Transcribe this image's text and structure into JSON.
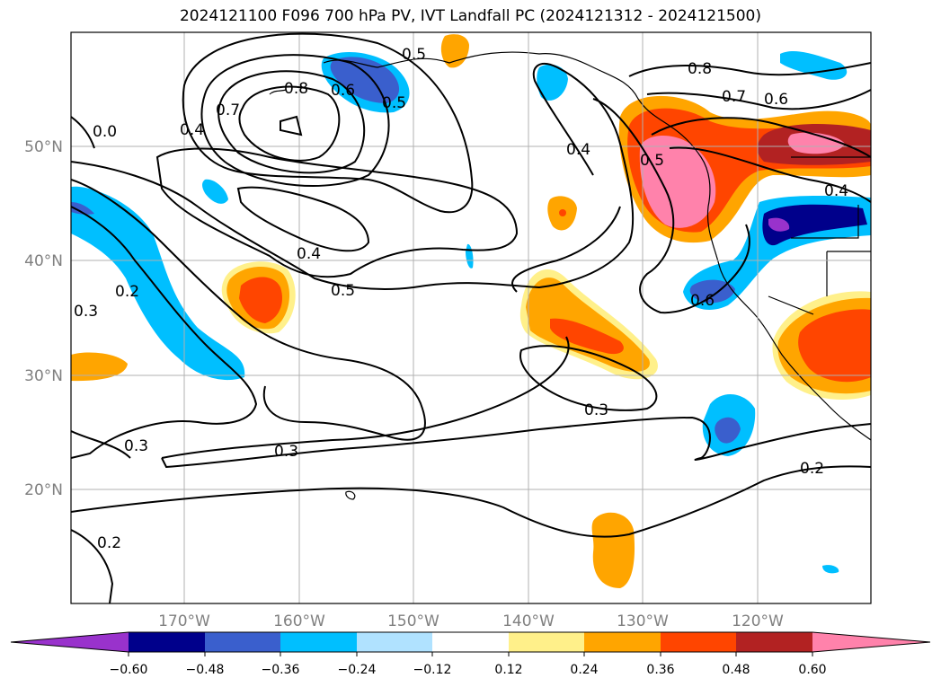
{
  "title": "2024121100 F096 700 hPa PV, IVT Landfall PC (2024121312 - 2024121500)",
  "axes": {
    "lat_labels": [
      "20°N",
      "30°N",
      "40°N",
      "50°N"
    ],
    "lon_labels": [
      "170°W",
      "160°W",
      "150°W",
      "140°W",
      "130°W",
      "120°W"
    ]
  },
  "contour_labels": [
    "0.5",
    "0.6",
    "0.5",
    "0.8",
    "0.7",
    "0.4",
    "0.0",
    "0.8",
    "0.7",
    "0.6",
    "0.4",
    "0.5",
    "0.4",
    "0.4",
    "0.5",
    "0.2",
    "0.3",
    "0.6",
    "0.3",
    "0.3",
    "0.3",
    "0.2",
    "0.2"
  ],
  "colorbar": {
    "ticks": [
      "−0.60",
      "−0.48",
      "−0.36",
      "−0.24",
      "−0.12",
      "0.12",
      "0.24",
      "0.36",
      "0.48",
      "0.60"
    ],
    "colors": [
      "#9932cc",
      "#00008b",
      "#3a5fcd",
      "#00bfff",
      "#b0e2ff",
      "#ffffff",
      "#fff08a",
      "#ffa500",
      "#ff4500",
      "#b22222",
      "#ff82ab"
    ]
  }
}
